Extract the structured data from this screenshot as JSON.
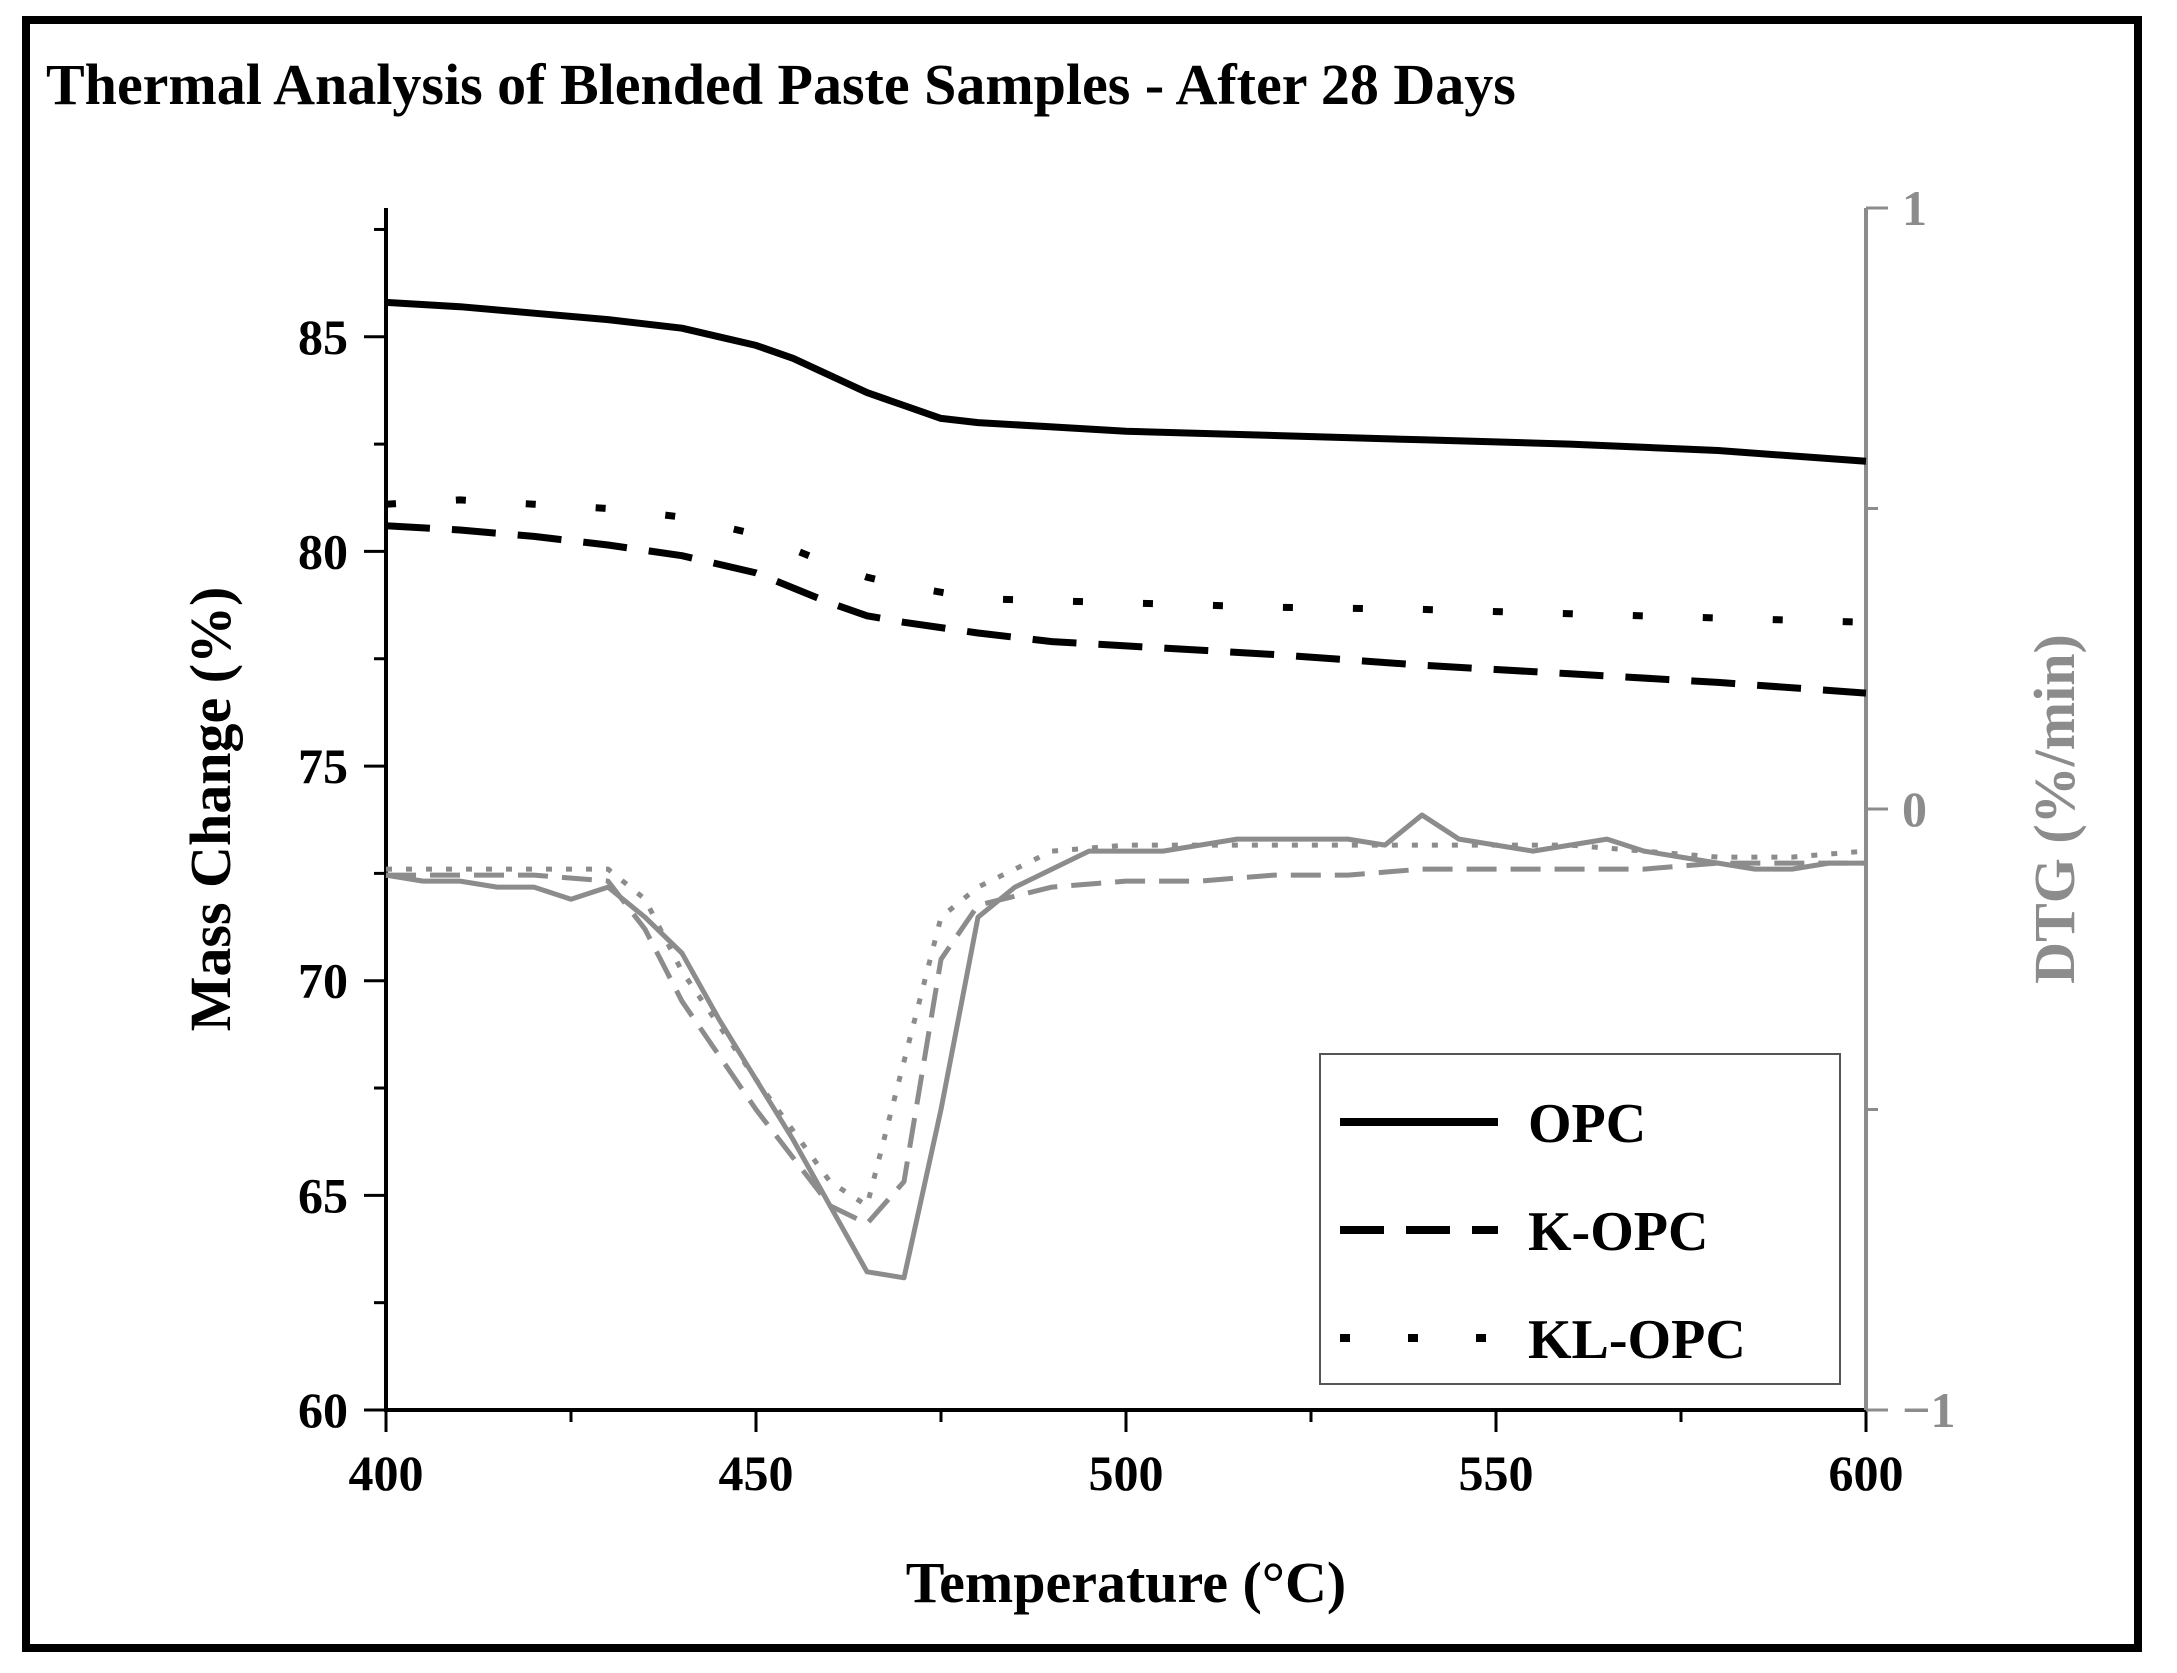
{
  "chart_data": {
    "type": "line",
    "title": "Thermal Analysis of Blended Paste Samples - After 28 Days",
    "xlabel": "Temperature (°C)",
    "ylabel": "Mass Change (%)",
    "y2label": "DTG (%/min)",
    "xlim": [
      400,
      600
    ],
    "ylim": [
      60,
      88
    ],
    "y2lim": [
      -1,
      1
    ],
    "xticks": [
      "400",
      "450",
      "500",
      "550",
      "600"
    ],
    "yticks": [
      "60",
      "65",
      "70",
      "75",
      "80",
      "85"
    ],
    "y2ticks": [
      "1",
      "0",
      "−1"
    ],
    "x_tick_values": [
      400,
      450,
      500,
      550,
      600
    ],
    "y_tick_values": [
      60,
      65,
      70,
      75,
      80,
      85
    ],
    "y2_tick_values": [
      1,
      0,
      -1
    ],
    "legend": {
      "position": "bottom-right",
      "entries": [
        "OPC",
        "K-OPC",
        "KL-OPC"
      ]
    },
    "colors": {
      "mass": "#000000",
      "dtg": "#8c8c8c",
      "axis": "#000000",
      "axis2": "#8c8c8c"
    },
    "series": [
      {
        "name": "OPC",
        "axis": "left",
        "style": "solid",
        "x": [
          400,
          410,
          420,
          430,
          440,
          445,
          450,
          455,
          460,
          465,
          470,
          475,
          480,
          490,
          500,
          520,
          540,
          560,
          580,
          600
        ],
        "values": [
          85.8,
          85.7,
          85.55,
          85.4,
          85.2,
          85.0,
          84.8,
          84.5,
          84.1,
          83.7,
          83.4,
          83.1,
          83.0,
          82.9,
          82.8,
          82.7,
          82.6,
          82.5,
          82.35,
          82.1
        ]
      },
      {
        "name": "K-OPC",
        "axis": "left",
        "style": "dashed",
        "x": [
          400,
          410,
          420,
          430,
          440,
          450,
          460,
          465,
          470,
          480,
          490,
          500,
          520,
          540,
          560,
          580,
          600
        ],
        "values": [
          80.6,
          80.5,
          80.35,
          80.15,
          79.9,
          79.5,
          78.8,
          78.5,
          78.35,
          78.1,
          77.9,
          77.8,
          77.6,
          77.35,
          77.15,
          76.95,
          76.7
        ]
      },
      {
        "name": "KL-OPC",
        "axis": "left",
        "style": "dotted",
        "x": [
          400,
          410,
          420,
          430,
          440,
          450,
          460,
          465,
          470,
          480,
          490,
          500,
          520,
          540,
          560,
          580,
          600
        ],
        "values": [
          81.1,
          81.2,
          81.1,
          81.0,
          80.8,
          80.4,
          79.7,
          79.4,
          79.2,
          78.9,
          78.85,
          78.8,
          78.7,
          78.65,
          78.55,
          78.45,
          78.35
        ]
      },
      {
        "name": "OPC DTG",
        "axis": "right",
        "style": "solid",
        "x": [
          400,
          405,
          410,
          415,
          420,
          425,
          430,
          435,
          440,
          445,
          450,
          455,
          460,
          465,
          470,
          475,
          480,
          485,
          490,
          495,
          500,
          505,
          510,
          515,
          520,
          525,
          530,
          535,
          540,
          545,
          550,
          555,
          560,
          565,
          570,
          575,
          580,
          585,
          590,
          595,
          600
        ],
        "values": [
          -0.11,
          -0.12,
          -0.12,
          -0.13,
          -0.13,
          -0.15,
          -0.13,
          -0.18,
          -0.24,
          -0.35,
          -0.45,
          -0.55,
          -0.66,
          -0.77,
          -0.78,
          -0.5,
          -0.18,
          -0.13,
          -0.1,
          -0.07,
          -0.07,
          -0.07,
          -0.06,
          -0.05,
          -0.05,
          -0.05,
          -0.05,
          -0.06,
          -0.01,
          -0.05,
          -0.06,
          -0.07,
          -0.06,
          -0.05,
          -0.07,
          -0.08,
          -0.09,
          -0.1,
          -0.1,
          -0.09,
          -0.09
        ]
      },
      {
        "name": "K-OPC DTG",
        "axis": "right",
        "style": "dashed",
        "x": [
          400,
          410,
          420,
          430,
          435,
          440,
          450,
          460,
          465,
          470,
          475,
          480,
          490,
          500,
          510,
          520,
          530,
          540,
          550,
          560,
          570,
          580,
          590,
          600
        ],
        "values": [
          -0.11,
          -0.11,
          -0.11,
          -0.12,
          -0.2,
          -0.32,
          -0.5,
          -0.66,
          -0.69,
          -0.62,
          -0.25,
          -0.16,
          -0.13,
          -0.12,
          -0.12,
          -0.11,
          -0.11,
          -0.1,
          -0.1,
          -0.1,
          -0.1,
          -0.09,
          -0.09,
          -0.09
        ]
      },
      {
        "name": "KL-OPC DTG",
        "axis": "right",
        "style": "dotted",
        "x": [
          400,
          410,
          420,
          430,
          435,
          440,
          450,
          460,
          465,
          470,
          475,
          480,
          490,
          500,
          510,
          520,
          530,
          540,
          550,
          560,
          570,
          580,
          590,
          600
        ],
        "values": [
          -0.1,
          -0.1,
          -0.1,
          -0.1,
          -0.15,
          -0.27,
          -0.45,
          -0.62,
          -0.66,
          -0.42,
          -0.18,
          -0.13,
          -0.07,
          -0.06,
          -0.06,
          -0.06,
          -0.06,
          -0.06,
          -0.06,
          -0.06,
          -0.07,
          -0.08,
          -0.08,
          -0.07
        ]
      }
    ]
  }
}
